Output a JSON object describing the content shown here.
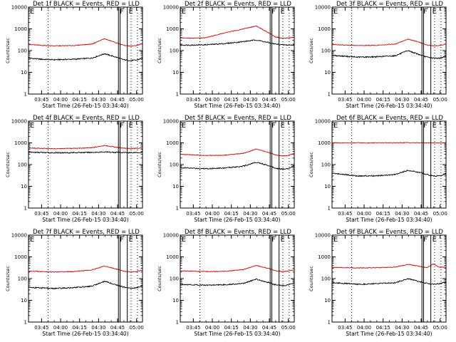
{
  "figure": {
    "x_ticks": [
      "03:45",
      "04:00",
      "04:15",
      "04:30",
      "04:45",
      "05:00"
    ],
    "y_ticks": [
      "1",
      "10",
      "100",
      "1000",
      "10000"
    ],
    "ylabel": "Counts/sec",
    "xlabel": "Start Time (26-Feb-15 03:34:40)",
    "colors": {
      "events": "#000000",
      "lld": "#e00000",
      "markers": "#000000"
    }
  },
  "chart_data": [
    {
      "type": "line",
      "title": "Det 1f BLACK = Events, RED = LLD",
      "xlabel": "Start Time (26-Feb-15 03:34:40)",
      "ylabel": "Counts/sec",
      "yscale": "log",
      "ylim": [
        1,
        10000
      ],
      "x_minutes_range": [
        0,
        90
      ],
      "series": [
        {
          "name": "Events",
          "color": "#000000",
          "x": [
            0,
            10,
            20,
            35,
            50,
            60,
            70,
            75,
            80,
            85,
            90
          ],
          "y": [
            45,
            40,
            38,
            40,
            45,
            72,
            48,
            38,
            35,
            36,
            45
          ]
        },
        {
          "name": "LLD",
          "color": "#e00000",
          "x": [
            0,
            10,
            20,
            35,
            50,
            60,
            70,
            75,
            80,
            85,
            90
          ],
          "y": [
            190,
            175,
            165,
            170,
            200,
            350,
            220,
            175,
            160,
            170,
            210
          ]
        }
      ],
      "annotations": [
        {
          "label": "E",
          "x_min": 0
        },
        {
          "label": "F",
          "x_min": 71
        },
        {
          "label": "E",
          "x_min": 78
        }
      ]
    },
    {
      "type": "line",
      "title": "Det 2f BLACK = Events, RED = LLD",
      "xlabel": "Start Time (26-Feb-15 03:34:40)",
      "ylabel": "Counts/sec",
      "yscale": "log",
      "ylim": [
        1,
        10000
      ],
      "x_minutes_range": [
        0,
        90
      ],
      "series": [
        {
          "name": "Events",
          "color": "#000000",
          "x": [
            0,
            10,
            20,
            35,
            50,
            60,
            70,
            75,
            80,
            85,
            90
          ],
          "y": [
            180,
            180,
            185,
            210,
            260,
            310,
            230,
            200,
            185,
            180,
            180
          ]
        },
        {
          "name": "LLD",
          "color": "#e00000",
          "x": [
            0,
            10,
            20,
            35,
            50,
            60,
            70,
            75,
            80,
            85,
            90
          ],
          "y": [
            380,
            370,
            390,
            650,
            1000,
            1350,
            650,
            430,
            370,
            380,
            420
          ]
        }
      ],
      "annotations": [
        {
          "label": "E",
          "x_min": 0
        },
        {
          "label": "F",
          "x_min": 71
        },
        {
          "label": "E",
          "x_min": 78
        }
      ]
    },
    {
      "type": "line",
      "title": "Det 3f BLACK = Events, RED = LLD",
      "xlabel": "Start Time (26-Feb-15 03:34:40)",
      "ylabel": "Counts/sec",
      "yscale": "log",
      "ylim": [
        1,
        10000
      ],
      "x_minutes_range": [
        0,
        90
      ],
      "series": [
        {
          "name": "Events",
          "color": "#000000",
          "x": [
            0,
            10,
            20,
            35,
            50,
            60,
            70,
            75,
            80,
            85,
            90
          ],
          "y": [
            60,
            55,
            50,
            52,
            58,
            100,
            62,
            50,
            45,
            45,
            55
          ]
        },
        {
          "name": "LLD",
          "color": "#e00000",
          "x": [
            0,
            10,
            20,
            35,
            50,
            60,
            70,
            75,
            80,
            85,
            90
          ],
          "y": [
            190,
            180,
            170,
            175,
            200,
            340,
            230,
            180,
            165,
            170,
            200
          ]
        }
      ],
      "annotations": [
        {
          "label": "E",
          "x_min": 0
        },
        {
          "label": "F",
          "x_min": 71
        },
        {
          "label": "E",
          "x_min": 78
        }
      ]
    },
    {
      "type": "line",
      "title": "Det 4f BLACK = Events, RED = LLD",
      "xlabel": "Start Time (26-Feb-15 03:34:40)",
      "ylabel": "Counts/sec",
      "yscale": "log",
      "ylim": [
        1,
        10000
      ],
      "x_minutes_range": [
        0,
        90
      ],
      "series": [
        {
          "name": "Events",
          "color": "#000000",
          "x": [
            0,
            10,
            20,
            35,
            50,
            60,
            70,
            75,
            80,
            85,
            90
          ],
          "y": [
            370,
            360,
            350,
            355,
            365,
            380,
            365,
            360,
            355,
            360,
            365
          ]
        },
        {
          "name": "LLD",
          "color": "#e00000",
          "x": [
            0,
            10,
            20,
            35,
            50,
            60,
            70,
            75,
            80,
            85,
            90
          ],
          "y": [
            580,
            560,
            540,
            550,
            600,
            750,
            620,
            570,
            550,
            560,
            590
          ]
        }
      ],
      "annotations": [
        {
          "label": "E",
          "x_min": 0
        },
        {
          "label": "F",
          "x_min": 71
        },
        {
          "label": "E",
          "x_min": 78
        }
      ]
    },
    {
      "type": "line",
      "title": "Det 5f BLACK = Events, RED = LLD",
      "xlabel": "Start Time (26-Feb-15 03:34:40)",
      "ylabel": "Counts/sec",
      "yscale": "log",
      "ylim": [
        1,
        10000
      ],
      "x_minutes_range": [
        0,
        90
      ],
      "series": [
        {
          "name": "Events",
          "color": "#000000",
          "x": [
            0,
            10,
            20,
            35,
            50,
            60,
            70,
            75,
            80,
            85,
            90
          ],
          "y": [
            72,
            68,
            65,
            70,
            85,
            130,
            90,
            70,
            62,
            65,
            90
          ]
        },
        {
          "name": "LLD",
          "color": "#e00000",
          "x": [
            0,
            10,
            20,
            35,
            50,
            60,
            70,
            75,
            80,
            85,
            90
          ],
          "y": [
            300,
            280,
            260,
            270,
            330,
            520,
            360,
            280,
            250,
            260,
            330
          ]
        }
      ],
      "annotations": [
        {
          "label": "E",
          "x_min": 0
        },
        {
          "label": "F",
          "x_min": 71
        },
        {
          "label": "E",
          "x_min": 78
        }
      ]
    },
    {
      "type": "line",
      "title": "Det 6f BLACK = Events, RED = LLD",
      "xlabel": "Start Time (26-Feb-15 03:34:40)",
      "ylabel": "Counts/sec",
      "yscale": "log",
      "ylim": [
        1,
        10000
      ],
      "x_minutes_range": [
        0,
        90
      ],
      "series": [
        {
          "name": "Events",
          "color": "#000000",
          "x": [
            0,
            10,
            20,
            35,
            50,
            60,
            70,
            75,
            80,
            85,
            90
          ],
          "y": [
            40,
            35,
            30,
            30,
            35,
            55,
            42,
            35,
            30,
            30,
            38
          ]
        },
        {
          "name": "LLD",
          "color": "#e00000",
          "x": [
            0,
            10,
            20,
            35,
            50,
            60,
            70,
            75,
            80,
            85,
            90
          ],
          "y": [
            1000,
            1000,
            1000,
            1000,
            1000,
            1020,
            1000,
            1000,
            1000,
            1000,
            1000
          ]
        }
      ],
      "annotations": [
        {
          "label": "E",
          "x_min": 0
        },
        {
          "label": "F",
          "x_min": 71
        },
        {
          "label": "E",
          "x_min": 78
        }
      ]
    },
    {
      "type": "line",
      "title": "Det 7f BLACK = Events, RED = LLD",
      "xlabel": "Start Time (26-Feb-15 03:34:40)",
      "ylabel": "Counts/sec",
      "yscale": "log",
      "ylim": [
        1,
        10000
      ],
      "x_minutes_range": [
        0,
        90
      ],
      "series": [
        {
          "name": "Events",
          "color": "#000000",
          "x": [
            0,
            10,
            20,
            35,
            50,
            60,
            70,
            75,
            80,
            85,
            90
          ],
          "y": [
            40,
            37,
            35,
            38,
            45,
            75,
            50,
            40,
            36,
            37,
            48
          ]
        },
        {
          "name": "LLD",
          "color": "#e00000",
          "x": [
            0,
            10,
            20,
            35,
            50,
            60,
            70,
            75,
            80,
            85,
            90
          ],
          "y": [
            220,
            210,
            200,
            210,
            250,
            380,
            270,
            220,
            200,
            210,
            250
          ]
        }
      ],
      "annotations": [
        {
          "label": "E",
          "x_min": 0
        },
        {
          "label": "F",
          "x_min": 71
        },
        {
          "label": "E",
          "x_min": 78
        }
      ]
    },
    {
      "type": "line",
      "title": "Det 8f BLACK = Events, RED = LLD",
      "xlabel": "Start Time (26-Feb-15 03:34:40)",
      "ylabel": "Counts/sec",
      "yscale": "log",
      "ylim": [
        1,
        10000
      ],
      "x_minutes_range": [
        0,
        90
      ],
      "series": [
        {
          "name": "Events",
          "color": "#000000",
          "x": [
            0,
            10,
            20,
            35,
            50,
            60,
            70,
            75,
            80,
            85,
            90
          ],
          "y": [
            55,
            52,
            50,
            52,
            60,
            95,
            65,
            52,
            48,
            50,
            62
          ]
        },
        {
          "name": "LLD",
          "color": "#e00000",
          "x": [
            0,
            10,
            20,
            35,
            50,
            60,
            70,
            75,
            80,
            85,
            90
          ],
          "y": [
            230,
            220,
            210,
            215,
            260,
            400,
            290,
            230,
            210,
            220,
            260
          ]
        }
      ],
      "annotations": [
        {
          "label": "E",
          "x_min": 0
        },
        {
          "label": "F",
          "x_min": 71
        },
        {
          "label": "E",
          "x_min": 78
        }
      ]
    },
    {
      "type": "line",
      "title": "Det 9f BLACK = Events, RED = LLD",
      "xlabel": "Start Time (26-Feb-15 03:34:40)",
      "ylabel": "Counts/sec",
      "yscale": "log",
      "ylim": [
        1,
        10000
      ],
      "x_minutes_range": [
        0,
        90
      ],
      "series": [
        {
          "name": "Events",
          "color": "#000000",
          "x": [
            0,
            10,
            20,
            35,
            50,
            60,
            70,
            75,
            80,
            85,
            90
          ],
          "y": [
            65,
            60,
            55,
            58,
            65,
            100,
            70,
            60,
            55,
            58,
            70
          ]
        },
        {
          "name": "LLD",
          "color": "#e00000",
          "x": [
            0,
            10,
            20,
            35,
            50,
            60,
            70,
            75,
            80,
            85,
            90
          ],
          "y": [
            330,
            320,
            310,
            315,
            340,
            450,
            360,
            320,
            480,
            330,
            340
          ]
        }
      ],
      "annotations": [
        {
          "label": "E",
          "x_min": 0
        },
        {
          "label": "F",
          "x_min": 71
        },
        {
          "label": "E",
          "x_min": 78
        }
      ]
    }
  ]
}
